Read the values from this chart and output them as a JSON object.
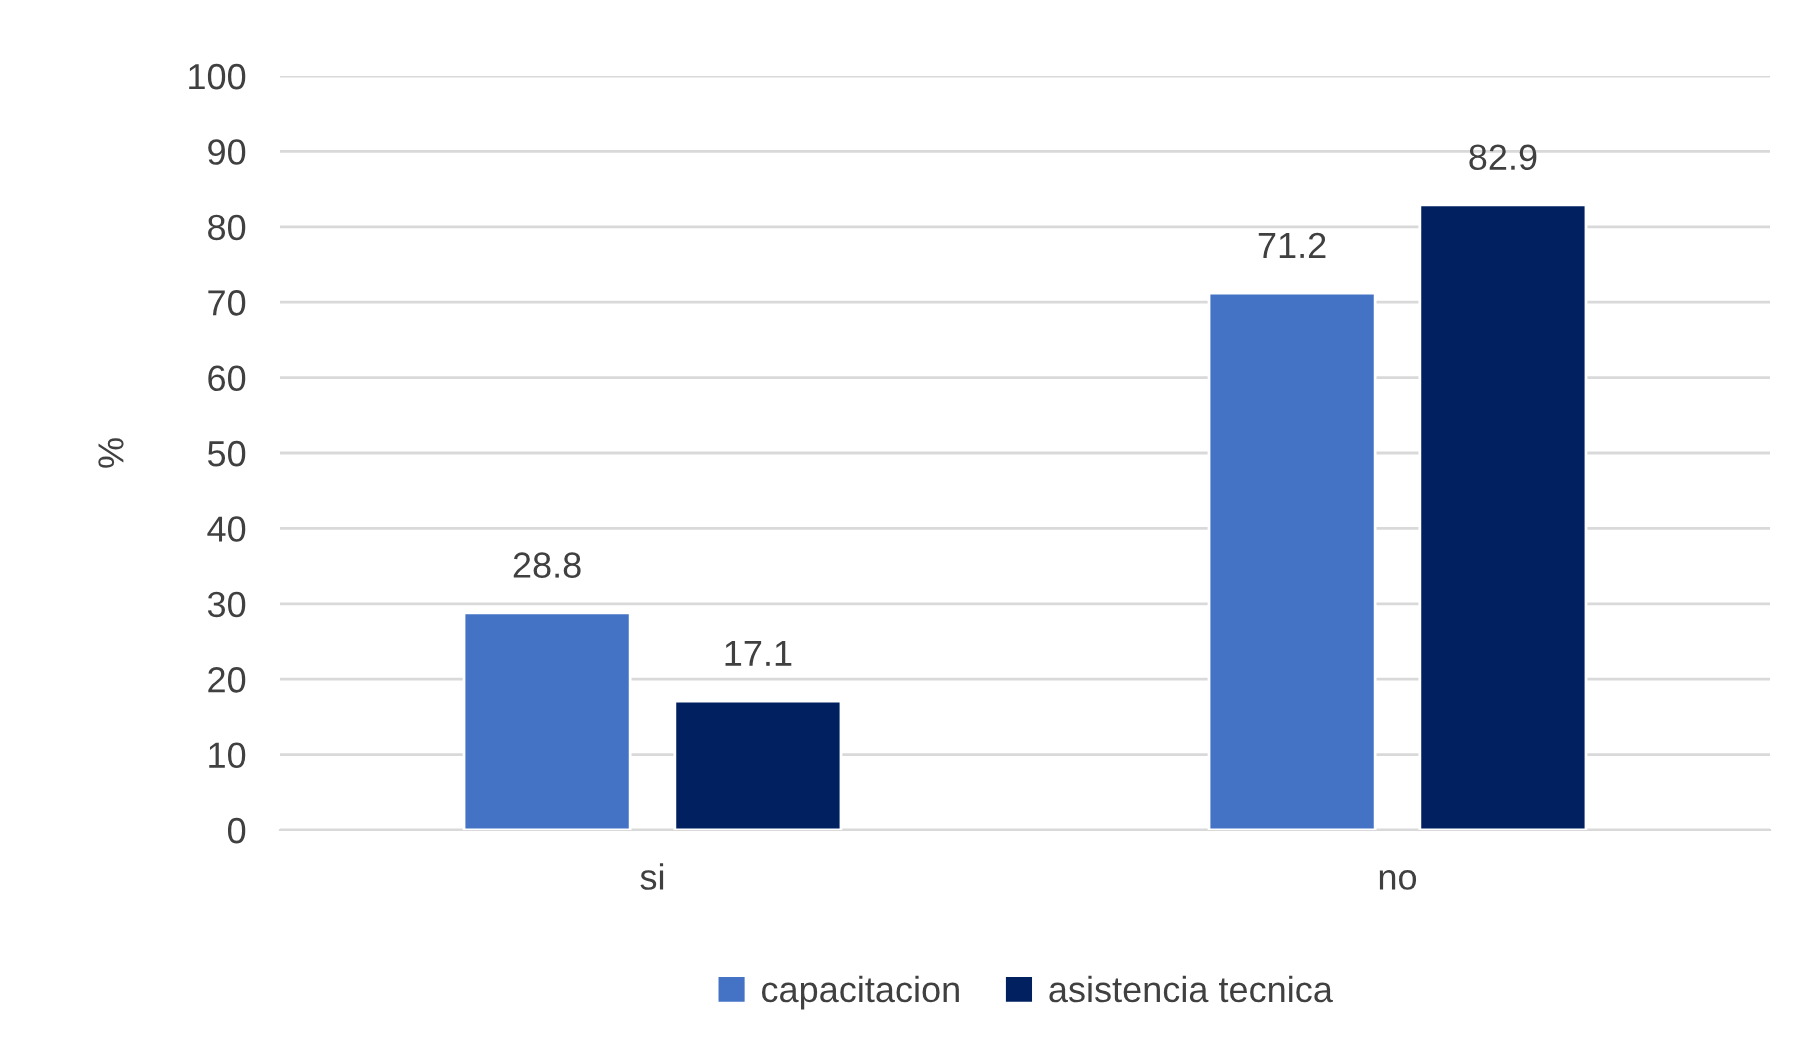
{
  "chart_data": {
    "type": "bar",
    "ylabel": "%",
    "categories": [
      "si",
      "no"
    ],
    "series": [
      {
        "name": "capacitacion",
        "color": "#4472c4",
        "values": [
          28.8,
          71.2
        ]
      },
      {
        "name": "asistencia tecnica",
        "color": "#002060",
        "values": [
          17.1,
          82.9
        ]
      }
    ],
    "ylim": [
      0,
      100
    ],
    "yticks": [
      0,
      10,
      20,
      30,
      40,
      50,
      60,
      70,
      80,
      90,
      100
    ],
    "grid": "y",
    "legend": "bottom",
    "data_labels": true
  }
}
